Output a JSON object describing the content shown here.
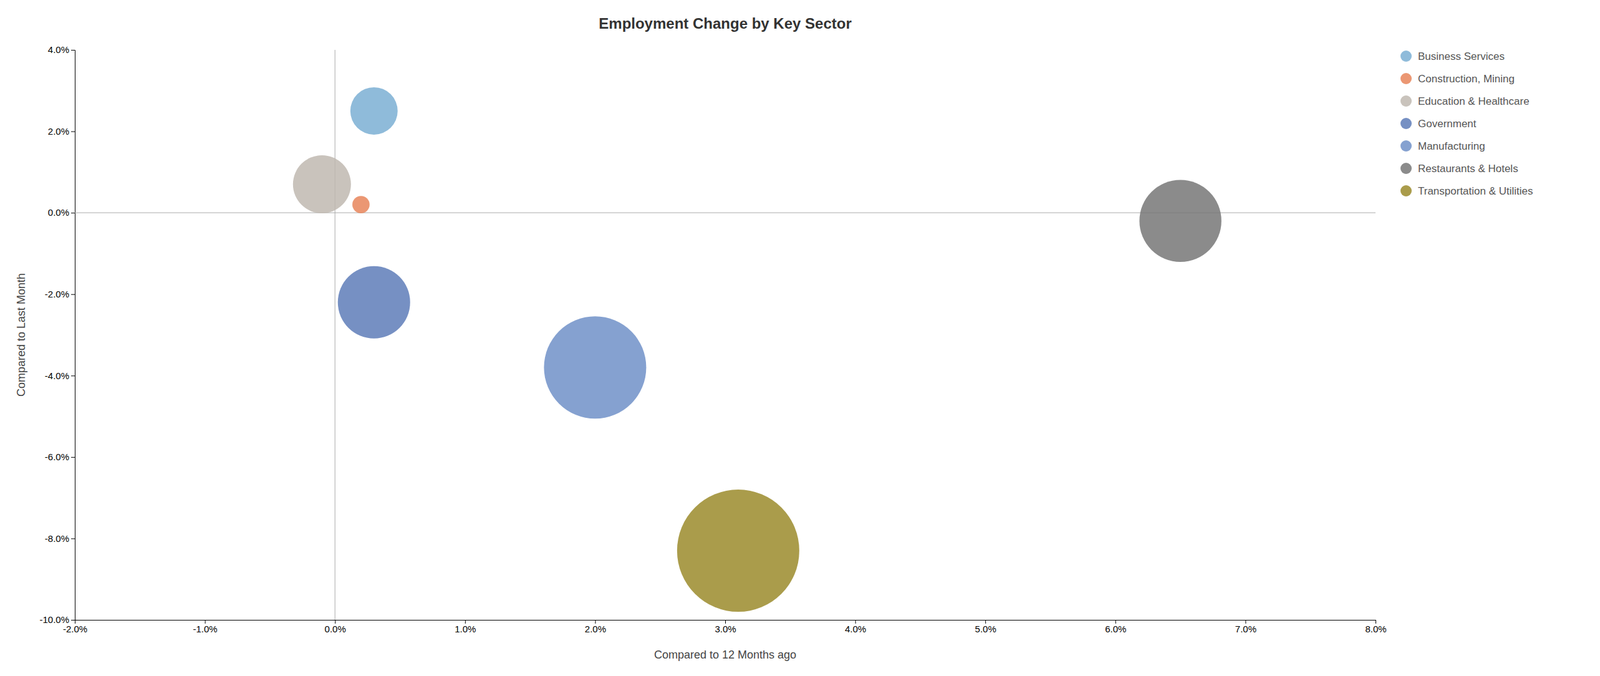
{
  "chart_data": {
    "type": "bubble",
    "title": "Employment Change by Key Sector",
    "x_label": "Compared to 12 Months ago",
    "y_label": "Compared to Last Month",
    "xlim": [
      -0.02,
      0.08
    ],
    "ylim": [
      -0.1,
      0.04
    ],
    "xticks": [
      {
        "value": -0.02,
        "label": "-2.0%"
      },
      {
        "value": -0.01,
        "label": "-1.0%"
      },
      {
        "value": 0.0,
        "label": "0.0%"
      },
      {
        "value": 0.01,
        "label": "1.0%"
      },
      {
        "value": 0.02,
        "label": "2.0%"
      },
      {
        "value": 0.03,
        "label": "3.0%"
      },
      {
        "value": 0.04,
        "label": "4.0%"
      },
      {
        "value": 0.05,
        "label": "5.0%"
      },
      {
        "value": 0.06,
        "label": "6.0%"
      },
      {
        "value": 0.07,
        "label": "7.0%"
      },
      {
        "value": 0.08,
        "label": "8.0%"
      }
    ],
    "yticks": [
      {
        "value": -0.1,
        "label": "-10.0%"
      },
      {
        "value": -0.08,
        "label": "-8.0%"
      },
      {
        "value": -0.06,
        "label": "-6.0%"
      },
      {
        "value": -0.04,
        "label": "-4.0%"
      },
      {
        "value": -0.02,
        "label": "-2.0%"
      },
      {
        "value": 0.0,
        "label": "0.0%"
      },
      {
        "value": 0.02,
        "label": "2.0%"
      },
      {
        "value": 0.04,
        "label": "4.0%"
      }
    ],
    "grid": false,
    "legend": "right",
    "series": [
      {
        "name": "Business Services",
        "color": "#7BAFD4",
        "x": [
          0.003
        ],
        "values": [
          0.025
        ],
        "sizes": [
          3000
        ]
      },
      {
        "name": "Construction, Mining",
        "color": "#E8855A",
        "x": [
          0.002
        ],
        "values": [
          0.002
        ],
        "sizes": [
          400
        ]
      },
      {
        "name": "Education & Healthcare",
        "color": "#C0B8B0",
        "x": [
          -0.001
        ],
        "values": [
          0.007
        ],
        "sizes": [
          4500
        ]
      },
      {
        "name": "Government",
        "color": "#5E7CB8",
        "x": [
          0.003
        ],
        "values": [
          -0.022
        ],
        "sizes": [
          7000
        ]
      },
      {
        "name": "Manufacturing",
        "color": "#7090C8",
        "x": [
          0.02
        ],
        "values": [
          -0.038
        ],
        "sizes": [
          14000
        ]
      },
      {
        "name": "Restaurants & Hotels",
        "color": "#777777",
        "x": [
          0.065
        ],
        "values": [
          -0.002
        ],
        "sizes": [
          9000
        ]
      },
      {
        "name": "Transportation & Utilities",
        "color": "#9B8B2B",
        "x": [
          0.031
        ],
        "values": [
          -0.083
        ],
        "sizes": [
          20000
        ]
      }
    ]
  }
}
